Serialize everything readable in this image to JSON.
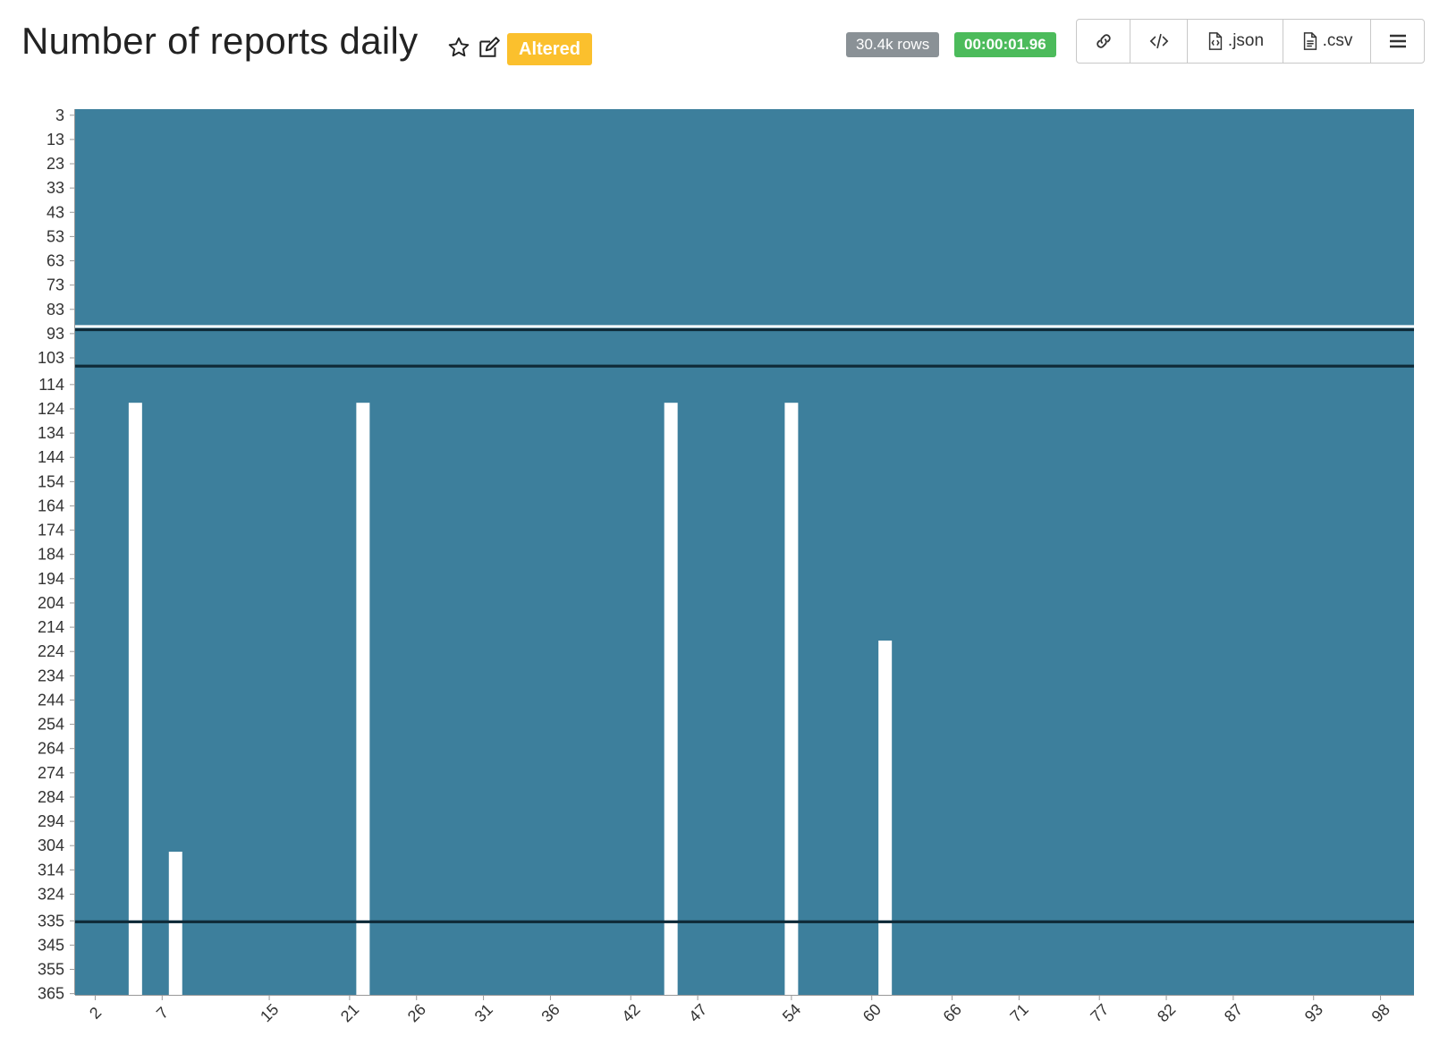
{
  "header": {
    "title": "Number of reports daily",
    "badge_altered": "Altered",
    "rows_badge": "30.4k rows",
    "time_badge": "00:00:01.96",
    "buttons": {
      "link_icon": "link-icon",
      "embed_icon": "code-icon",
      "json_label": ".json",
      "csv_label": ".csv",
      "menu_icon": "hamburger-menu-icon"
    }
  },
  "colors": {
    "heatmap_fill": "#3d7f9c",
    "gap_fill": "#ffffff",
    "dark_band": "#0f2a38",
    "altered": "#fbc02d",
    "time_badge": "#4cbb5b",
    "rows_badge": "#8a9196"
  },
  "chart_data": {
    "type": "heatmap",
    "title": "",
    "xlabel": "",
    "ylabel": "",
    "x_domain": [
      1,
      100
    ],
    "y_domain": [
      1,
      365
    ],
    "x_tick_labels": [
      "2",
      "7",
      "15",
      "21",
      "26",
      "31",
      "36",
      "42",
      "47",
      "54",
      "60",
      "66",
      "71",
      "77",
      "82",
      "87",
      "93",
      "98"
    ],
    "y_tick_labels": [
      "3",
      "13",
      "23",
      "33",
      "43",
      "53",
      "63",
      "73",
      "83",
      "93",
      "103",
      "114",
      "124",
      "134",
      "144",
      "154",
      "164",
      "174",
      "184",
      "194",
      "204",
      "214",
      "224",
      "234",
      "244",
      "254",
      "264",
      "274",
      "284",
      "294",
      "304",
      "314",
      "324",
      "335",
      "345",
      "355",
      "365"
    ],
    "missing_segments": [
      {
        "x": 5,
        "y_from": 122,
        "y_to": 365
      },
      {
        "x": 8,
        "y_from": 307,
        "y_to": 365
      },
      {
        "x": 22,
        "y_from": 122,
        "y_to": 365
      },
      {
        "x": 45,
        "y_from": 122,
        "y_to": 365
      },
      {
        "x": 54,
        "y_from": 122,
        "y_to": 365
      },
      {
        "x": 61,
        "y_from": 220,
        "y_to": 365
      }
    ],
    "horizontal_lines": [
      {
        "y": 90,
        "style": "white"
      },
      {
        "y": 91,
        "style": "dark"
      },
      {
        "y": 106,
        "style": "dark"
      },
      {
        "y": 335,
        "style": "dark"
      }
    ],
    "grid": false,
    "legend": "none"
  }
}
